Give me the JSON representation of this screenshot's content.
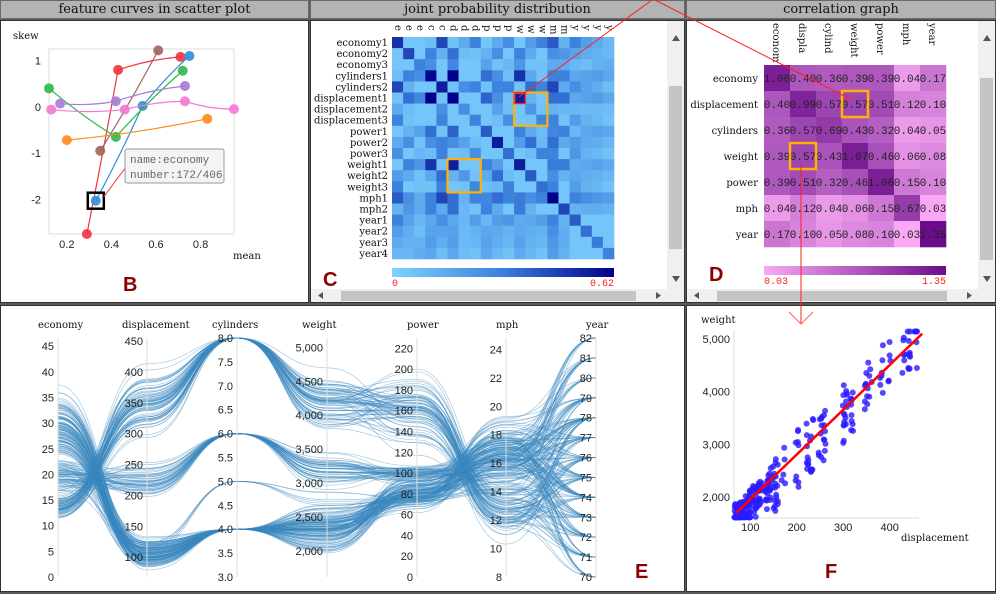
{
  "titles": {
    "b": "feature curves in scatter plot",
    "c": "joint probability distribution",
    "d": "correlation graph"
  },
  "panel_letters": {
    "b": "B",
    "c": "C",
    "d": "D",
    "e": "E",
    "f": "F"
  },
  "colors": {
    "highlight": "#ffb300",
    "link_line": "#ff0000",
    "letter": "#8b0000",
    "pc_line": "#3a87bf",
    "scatter_point": "#2a1aff",
    "regression": "#ff0000"
  },
  "chart_data": [
    {
      "id": "feature-curves",
      "type": "line",
      "xlabel": "mean",
      "ylabel": "skew",
      "xlim": [
        0.12,
        0.95
      ],
      "ylim": [
        -2.75,
        1.25
      ],
      "x_ticks": [
        "0.2",
        "0.4",
        "0.6",
        "0.8"
      ],
      "y_ticks": [
        "1",
        "0",
        "-1",
        "-2"
      ],
      "series": [
        {
          "color": "#f0343c",
          "points": [
            [
              0.29,
              -2.75
            ],
            [
              0.43,
              0.8
            ],
            [
              0.71,
              1.08
            ]
          ]
        },
        {
          "color": "#2d8fd6",
          "points": [
            [
              0.33,
              -2.03
            ],
            [
              0.54,
              0.02
            ],
            [
              0.75,
              1.1
            ]
          ]
        },
        {
          "color": "#a0655a",
          "points": [
            [
              0.35,
              -0.95
            ],
            [
              0.61,
              1.22
            ]
          ]
        },
        {
          "color": "#2fb84a",
          "points": [
            [
              0.12,
              0.4
            ],
            [
              0.42,
              -0.65
            ],
            [
              0.72,
              0.78
            ]
          ]
        },
        {
          "color": "#a97ad6",
          "points": [
            [
              0.17,
              0.07
            ],
            [
              0.42,
              0.12
            ],
            [
              0.73,
              0.45
            ]
          ]
        },
        {
          "color": "#f279d2",
          "points": [
            [
              0.13,
              -0.06
            ],
            [
              0.46,
              -0.06
            ],
            [
              0.73,
              0.12
            ],
            [
              0.95,
              -0.05
            ]
          ]
        },
        {
          "color": "#ff8c1a",
          "points": [
            [
              0.2,
              -0.72
            ],
            [
              0.83,
              -0.26
            ]
          ]
        }
      ],
      "tooltip": {
        "name": "name:economy",
        "number": "number:172/406"
      }
    },
    {
      "id": "joint-probability",
      "type": "heatmap",
      "row_labels": [
        "economy1",
        "economy2",
        "economy3",
        "cylinders1",
        "cylinders2",
        "displacement1",
        "displacement2",
        "displacement3",
        "power1",
        "power2",
        "power3",
        "weight1",
        "weight2",
        "weight3",
        "mph1",
        "mph2",
        "year1",
        "year2",
        "year3",
        "year4"
      ],
      "col_labels": [
        "e",
        "e",
        "e",
        "c",
        "c",
        "d",
        "d",
        "d",
        "p",
        "p",
        "p",
        "w",
        "w",
        "w",
        "m",
        "m",
        "y",
        "y",
        "y",
        "y"
      ],
      "colorbar": {
        "min": "0",
        "max": "0.62",
        "min_color": "#7fd2ff",
        "max_color": "#00008b"
      },
      "values": [
        [
          0.5,
          0.05,
          0.05,
          0.08,
          0.45,
          0.06,
          0.15,
          0.3,
          0.05,
          0.15,
          0.25,
          0.05,
          0.2,
          0.3,
          0.4,
          0.12,
          0.3,
          0.2,
          0.15,
          0.1
        ],
        [
          0.05,
          0.45,
          0.05,
          0.3,
          0.12,
          0.35,
          0.08,
          0.06,
          0.12,
          0.25,
          0.05,
          0.3,
          0.15,
          0.05,
          0.25,
          0.22,
          0.18,
          0.14,
          0.12,
          0.1
        ],
        [
          0.05,
          0.05,
          0.3,
          0.25,
          0.05,
          0.28,
          0.05,
          0.05,
          0.18,
          0.06,
          0.1,
          0.22,
          0.06,
          0.06,
          0.15,
          0.15,
          0.1,
          0.08,
          0.12,
          0.14
        ],
        [
          0.08,
          0.3,
          0.25,
          0.6,
          0.05,
          0.62,
          0.05,
          0.05,
          0.35,
          0.25,
          0.08,
          0.5,
          0.16,
          0.06,
          0.3,
          0.3,
          0.16,
          0.18,
          0.2,
          0.16
        ],
        [
          0.45,
          0.12,
          0.05,
          0.05,
          0.55,
          0.06,
          0.25,
          0.3,
          0.06,
          0.3,
          0.3,
          0.06,
          0.35,
          0.3,
          0.45,
          0.15,
          0.25,
          0.18,
          0.14,
          0.08
        ],
        [
          0.06,
          0.35,
          0.28,
          0.62,
          0.06,
          0.62,
          0.05,
          0.05,
          0.38,
          0.25,
          0.06,
          0.55,
          0.12,
          0.05,
          0.35,
          0.35,
          0.16,
          0.18,
          0.2,
          0.16
        ],
        [
          0.15,
          0.08,
          0.05,
          0.05,
          0.25,
          0.05,
          0.25,
          0.05,
          0.05,
          0.18,
          0.08,
          0.05,
          0.22,
          0.06,
          0.12,
          0.1,
          0.1,
          0.09,
          0.09,
          0.08
        ],
        [
          0.3,
          0.06,
          0.05,
          0.05,
          0.3,
          0.05,
          0.05,
          0.3,
          0.05,
          0.08,
          0.25,
          0.05,
          0.06,
          0.28,
          0.3,
          0.06,
          0.2,
          0.12,
          0.1,
          0.06
        ],
        [
          0.05,
          0.12,
          0.18,
          0.35,
          0.06,
          0.38,
          0.05,
          0.05,
          0.4,
          0.05,
          0.05,
          0.3,
          0.15,
          0.08,
          0.28,
          0.3,
          0.1,
          0.16,
          0.18,
          0.16
        ],
        [
          0.15,
          0.25,
          0.06,
          0.25,
          0.3,
          0.25,
          0.18,
          0.08,
          0.05,
          0.55,
          0.05,
          0.2,
          0.35,
          0.1,
          0.35,
          0.15,
          0.2,
          0.15,
          0.14,
          0.1
        ],
        [
          0.25,
          0.05,
          0.1,
          0.08,
          0.3,
          0.06,
          0.08,
          0.25,
          0.05,
          0.05,
          0.35,
          0.05,
          0.08,
          0.3,
          0.3,
          0.05,
          0.22,
          0.12,
          0.1,
          0.06
        ],
        [
          0.05,
          0.3,
          0.22,
          0.5,
          0.06,
          0.55,
          0.05,
          0.05,
          0.3,
          0.2,
          0.05,
          0.55,
          0.05,
          0.05,
          0.32,
          0.32,
          0.15,
          0.16,
          0.18,
          0.15
        ],
        [
          0.2,
          0.15,
          0.06,
          0.16,
          0.35,
          0.12,
          0.22,
          0.06,
          0.15,
          0.35,
          0.08,
          0.05,
          0.4,
          0.05,
          0.25,
          0.12,
          0.16,
          0.14,
          0.12,
          0.1
        ],
        [
          0.3,
          0.05,
          0.06,
          0.06,
          0.3,
          0.05,
          0.06,
          0.28,
          0.08,
          0.1,
          0.3,
          0.05,
          0.05,
          0.35,
          0.3,
          0.05,
          0.2,
          0.12,
          0.1,
          0.06
        ],
        [
          0.4,
          0.25,
          0.15,
          0.3,
          0.45,
          0.35,
          0.12,
          0.3,
          0.28,
          0.35,
          0.3,
          0.32,
          0.25,
          0.3,
          0.62,
          0.05,
          0.3,
          0.25,
          0.22,
          0.2
        ],
        [
          0.12,
          0.22,
          0.15,
          0.3,
          0.15,
          0.35,
          0.1,
          0.06,
          0.3,
          0.15,
          0.05,
          0.32,
          0.12,
          0.05,
          0.05,
          0.45,
          0.12,
          0.14,
          0.14,
          0.12
        ],
        [
          0.3,
          0.18,
          0.1,
          0.16,
          0.25,
          0.16,
          0.1,
          0.2,
          0.1,
          0.2,
          0.22,
          0.15,
          0.16,
          0.2,
          0.3,
          0.12,
          0.4,
          0.05,
          0.05,
          0.05
        ],
        [
          0.2,
          0.14,
          0.08,
          0.18,
          0.18,
          0.18,
          0.09,
          0.12,
          0.16,
          0.15,
          0.12,
          0.16,
          0.14,
          0.12,
          0.25,
          0.14,
          0.05,
          0.35,
          0.05,
          0.05
        ],
        [
          0.15,
          0.12,
          0.12,
          0.2,
          0.14,
          0.2,
          0.09,
          0.1,
          0.18,
          0.14,
          0.1,
          0.18,
          0.12,
          0.1,
          0.22,
          0.14,
          0.05,
          0.05,
          0.32,
          0.05
        ],
        [
          0.1,
          0.1,
          0.14,
          0.16,
          0.08,
          0.16,
          0.08,
          0.06,
          0.16,
          0.1,
          0.06,
          0.15,
          0.1,
          0.06,
          0.2,
          0.12,
          0.05,
          0.05,
          0.05,
          0.3
        ]
      ],
      "highlights": [
        {
          "rows": [
            5,
            7
          ],
          "cols": [
            11,
            13
          ]
        },
        {
          "rows": [
            11,
            13
          ],
          "cols": [
            5,
            7
          ]
        }
      ],
      "selected_cell": {
        "row": 5,
        "col": 11
      }
    },
    {
      "id": "correlation",
      "type": "heatmap",
      "row_labels": [
        "economy",
        "displacement",
        "cylinders",
        "weight",
        "power",
        "mph",
        "year"
      ],
      "col_labels": [
        "econom",
        "displa",
        "cylind",
        "weight",
        "power",
        "mph",
        "year"
      ],
      "colorbar": {
        "min": "0.03",
        "max": "1.35",
        "min_color": "#f8a8f4",
        "max_color": "#6a0d8a"
      },
      "values": [
        [
          "1.06",
          "0.40",
          "0.36",
          "0.39",
          "0.39",
          "0.04",
          "0.17"
        ],
        [
          "0.40",
          "0.99",
          "0.57",
          "0.57",
          "0.51",
          "0.12",
          "0.10"
        ],
        [
          "0.36",
          "0.57",
          "0.69",
          "0.43",
          "0.32",
          "0.04",
          "0.05"
        ],
        [
          "0.39",
          "0.57",
          "0.43",
          "1.07",
          "0.46",
          "0.06",
          "0.08"
        ],
        [
          "0.39",
          "0.51",
          "0.32",
          "0.46",
          "1.06",
          "0.15",
          "0.10"
        ],
        [
          "0.04",
          "0.12",
          "0.04",
          "0.06",
          "0.15",
          "0.67",
          "0.03"
        ],
        [
          "0.17",
          "0.10",
          "0.05",
          "0.08",
          "0.10",
          "0.03",
          "1.35"
        ]
      ],
      "highlights": [
        {
          "row": 1,
          "col": 3
        },
        {
          "row": 3,
          "col": 1
        }
      ]
    },
    {
      "id": "parallel-coordinates",
      "type": "line",
      "records": 406,
      "axes": [
        {
          "name": "economy",
          "min": 0,
          "max": 46.6,
          "ticks": [
            "0",
            "5",
            "10",
            "15",
            "20",
            "25",
            "30",
            "35",
            "40",
            "45"
          ],
          "tick_values": [
            0,
            5,
            10,
            15,
            20,
            25,
            30,
            35,
            40,
            45
          ]
        },
        {
          "name": "displacement",
          "min": 68,
          "max": 455,
          "ticks": [
            "100",
            "150",
            "200",
            "250",
            "300",
            "350",
            "400",
            "450"
          ],
          "tick_values": [
            100,
            150,
            200,
            250,
            300,
            350,
            400,
            450
          ]
        },
        {
          "name": "cylinders",
          "min": 3,
          "max": 8,
          "ticks": [
            "3.0",
            "3.5",
            "4.0",
            "4.5",
            "5.0",
            "5.5",
            "6.0",
            "6.5",
            "7.0",
            "7.5",
            "8.0"
          ],
          "tick_values": [
            3,
            3.5,
            4,
            4.5,
            5,
            5.5,
            6,
            6.5,
            7,
            7.5,
            8
          ]
        },
        {
          "name": "weight",
          "min": 1613,
          "max": 5140,
          "ticks": [
            "2,000",
            "2,500",
            "3,000",
            "3,500",
            "4,000",
            "4,500",
            "5,000"
          ],
          "tick_values": [
            2000,
            2500,
            3000,
            3500,
            4000,
            4500,
            5000
          ]
        },
        {
          "name": "power",
          "min": 0,
          "max": 230,
          "ticks": [
            "0",
            "20",
            "40",
            "60",
            "80",
            "100",
            "120",
            "140",
            "160",
            "180",
            "200",
            "220"
          ],
          "tick_values": [
            0,
            20,
            40,
            60,
            80,
            100,
            120,
            140,
            160,
            180,
            200,
            220
          ]
        },
        {
          "name": "mph",
          "min": 8,
          "max": 24.8,
          "ticks": [
            "8",
            "10",
            "12",
            "14",
            "16",
            "18",
            "20",
            "22",
            "24"
          ],
          "tick_values": [
            8,
            10,
            12,
            14,
            16,
            18,
            20,
            22,
            24
          ]
        },
        {
          "name": "year",
          "min": 70,
          "max": 82,
          "ticks": [
            "70",
            "71",
            "72",
            "73",
            "74",
            "75",
            "76",
            "77",
            "78",
            "79",
            "80",
            "81",
            "82"
          ],
          "tick_values": [
            70,
            71,
            72,
            73,
            74,
            75,
            76,
            77,
            78,
            79,
            80,
            81,
            82
          ]
        }
      ]
    },
    {
      "id": "weight-vs-displacement",
      "type": "scatter",
      "xlabel": "displacement",
      "ylabel": "weight",
      "xlim": [
        65,
        463
      ],
      "ylim": [
        1600,
        5150
      ],
      "x_ticks": [
        "100",
        "200",
        "300",
        "400"
      ],
      "x_tick_values": [
        100,
        200,
        300,
        400
      ],
      "y_ticks": [
        "2,000",
        "3,000",
        "4,000",
        "5,000"
      ],
      "y_tick_values": [
        2000,
        3000,
        4000,
        5000
      ],
      "regression": [
        [
          70,
          1700
        ],
        [
          470,
          5100
        ]
      ]
    }
  ]
}
